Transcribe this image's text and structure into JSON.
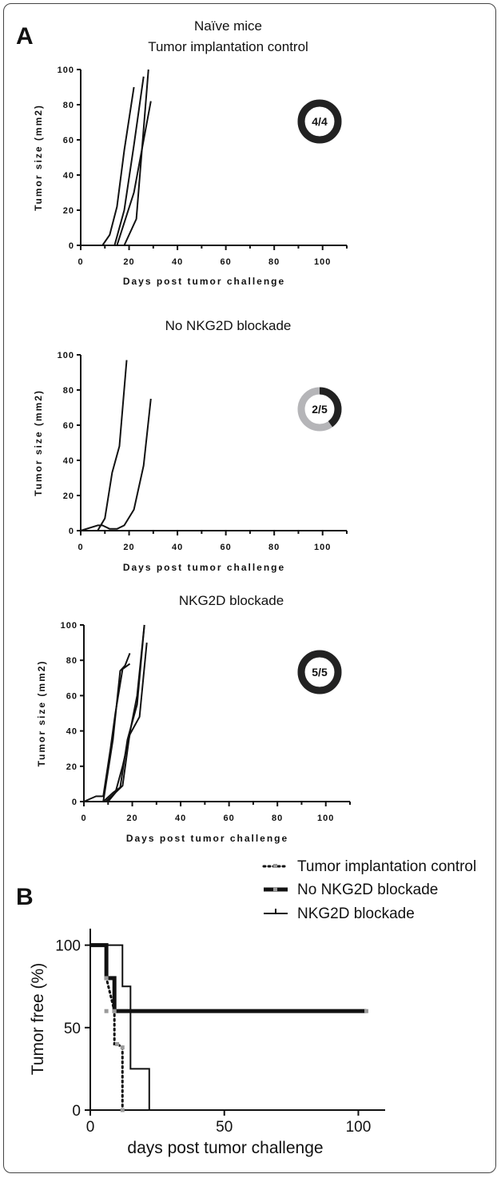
{
  "panels": [
    {
      "letter": "A"
    },
    {
      "letter": "B"
    }
  ],
  "chart_data": [
    {
      "type": "line",
      "title": "Naïve mice\nTumor implantation control",
      "xlabel": "Days post tumor challenge",
      "ylabel": "Tumor size (mm2)",
      "xlim": [
        0,
        110
      ],
      "ylim": [
        0,
        100
      ],
      "xticks": [
        "0",
        "20",
        "40",
        "60",
        "80",
        "100"
      ],
      "yticks": [
        "0",
        "20",
        "40",
        "60",
        "80",
        "100"
      ],
      "ring_label": "4/4",
      "ring_fraction": 1.0,
      "colors": {
        "line": "#111111",
        "ring_fill": "#222222",
        "ring_rest": "#b5b5b8"
      },
      "series": [
        {
          "x": [
            0,
            9,
            12,
            15,
            18,
            22
          ],
          "y": [
            0,
            0,
            6,
            22,
            54,
            90
          ]
        },
        {
          "x": [
            0,
            14,
            18,
            22,
            26
          ],
          "y": [
            0,
            0,
            20,
            57,
            96
          ]
        },
        {
          "x": [
            0,
            15,
            22,
            29
          ],
          "y": [
            0,
            0,
            30,
            82
          ]
        },
        {
          "x": [
            0,
            18,
            23,
            28
          ],
          "y": [
            0,
            0,
            15,
            100
          ]
        }
      ]
    },
    {
      "type": "line",
      "title": "No NKG2D blockade",
      "xlabel": "Days post tumor challenge",
      "ylabel": "Tumor size (mm2)",
      "xlim": [
        0,
        110
      ],
      "ylim": [
        0,
        100
      ],
      "xticks": [
        "0",
        "20",
        "40",
        "60",
        "80",
        "100"
      ],
      "yticks": [
        "0",
        "20",
        "40",
        "60",
        "80",
        "100"
      ],
      "ring_label": "2/5",
      "ring_fraction": 0.4,
      "colors": {
        "line": "#111111",
        "ring_fill": "#222222",
        "ring_rest": "#b5b5b8"
      },
      "series": [
        {
          "x": [
            0,
            7,
            10,
            13,
            16,
            19
          ],
          "y": [
            0,
            0,
            7,
            33,
            48,
            97
          ]
        },
        {
          "x": [
            0,
            7,
            9,
            12,
            15,
            18,
            22,
            26,
            29
          ],
          "y": [
            0,
            3,
            3,
            1,
            1,
            3,
            12,
            37,
            75
          ]
        }
      ]
    },
    {
      "type": "line",
      "title": "NKG2D blockade",
      "xlabel": "Days post tumor challenge",
      "ylabel": "Tumor size (mm2)",
      "xlim": [
        0,
        110
      ],
      "ylim": [
        0,
        100
      ],
      "xticks": [
        "0",
        "20",
        "40",
        "60",
        "80",
        "100"
      ],
      "yticks": [
        "0",
        "20",
        "40",
        "60",
        "80",
        "100"
      ],
      "ring_label": "5/5",
      "ring_fraction": 1.0,
      "colors": {
        "line": "#111111",
        "ring_fill": "#222222",
        "ring_rest": "#b5b5b8"
      },
      "series": [
        {
          "x": [
            0,
            5,
            8,
            11,
            13,
            16,
            19
          ],
          "y": [
            0,
            3,
            3,
            30,
            50,
            75,
            78
          ]
        },
        {
          "x": [
            0,
            8,
            12,
            15,
            17,
            19
          ],
          "y": [
            0,
            0,
            35,
            74,
            77,
            84
          ]
        },
        {
          "x": [
            0,
            8,
            12,
            15,
            18,
            22,
            25
          ],
          "y": [
            0,
            0,
            5,
            8,
            35,
            55,
            100
          ]
        },
        {
          "x": [
            0,
            10,
            13,
            16,
            19,
            23,
            26
          ],
          "y": [
            0,
            0,
            5,
            20,
            38,
            48,
            90
          ]
        },
        {
          "x": [
            0,
            9,
            13,
            16,
            19,
            22,
            25
          ],
          "y": [
            0,
            0,
            5,
            9,
            39,
            60,
            100
          ]
        }
      ]
    },
    {
      "type": "line",
      "xlabel": "days post tumor challenge",
      "ylabel": "Tumor free (%)",
      "xlim": [
        0,
        110
      ],
      "ylim": [
        0,
        110
      ],
      "xticks": [
        "0",
        "50",
        "100"
      ],
      "yticks": [
        "0",
        "50",
        "100"
      ],
      "legend": "top-right",
      "colors": {
        "line": "#111111",
        "marker": "#9a9a9a"
      },
      "series": [
        {
          "name": "Tumor implantation control",
          "style": "dotted",
          "x": [
            0,
            6,
            6,
            9,
            9,
            10,
            12,
            12
          ],
          "y": [
            100,
            100,
            80,
            60,
            40,
            40,
            38,
            0
          ]
        },
        {
          "name": "No NKG2D blockade",
          "style": "thick",
          "x": [
            0,
            6,
            6,
            9,
            9,
            103
          ],
          "y": [
            100,
            100,
            80,
            80,
            60,
            60
          ]
        },
        {
          "name": "NKG2D blockade",
          "style": "thin",
          "x": [
            0,
            12,
            12,
            15,
            15,
            22,
            22
          ],
          "y": [
            100,
            100,
            75,
            75,
            25,
            25,
            0
          ]
        }
      ]
    }
  ]
}
